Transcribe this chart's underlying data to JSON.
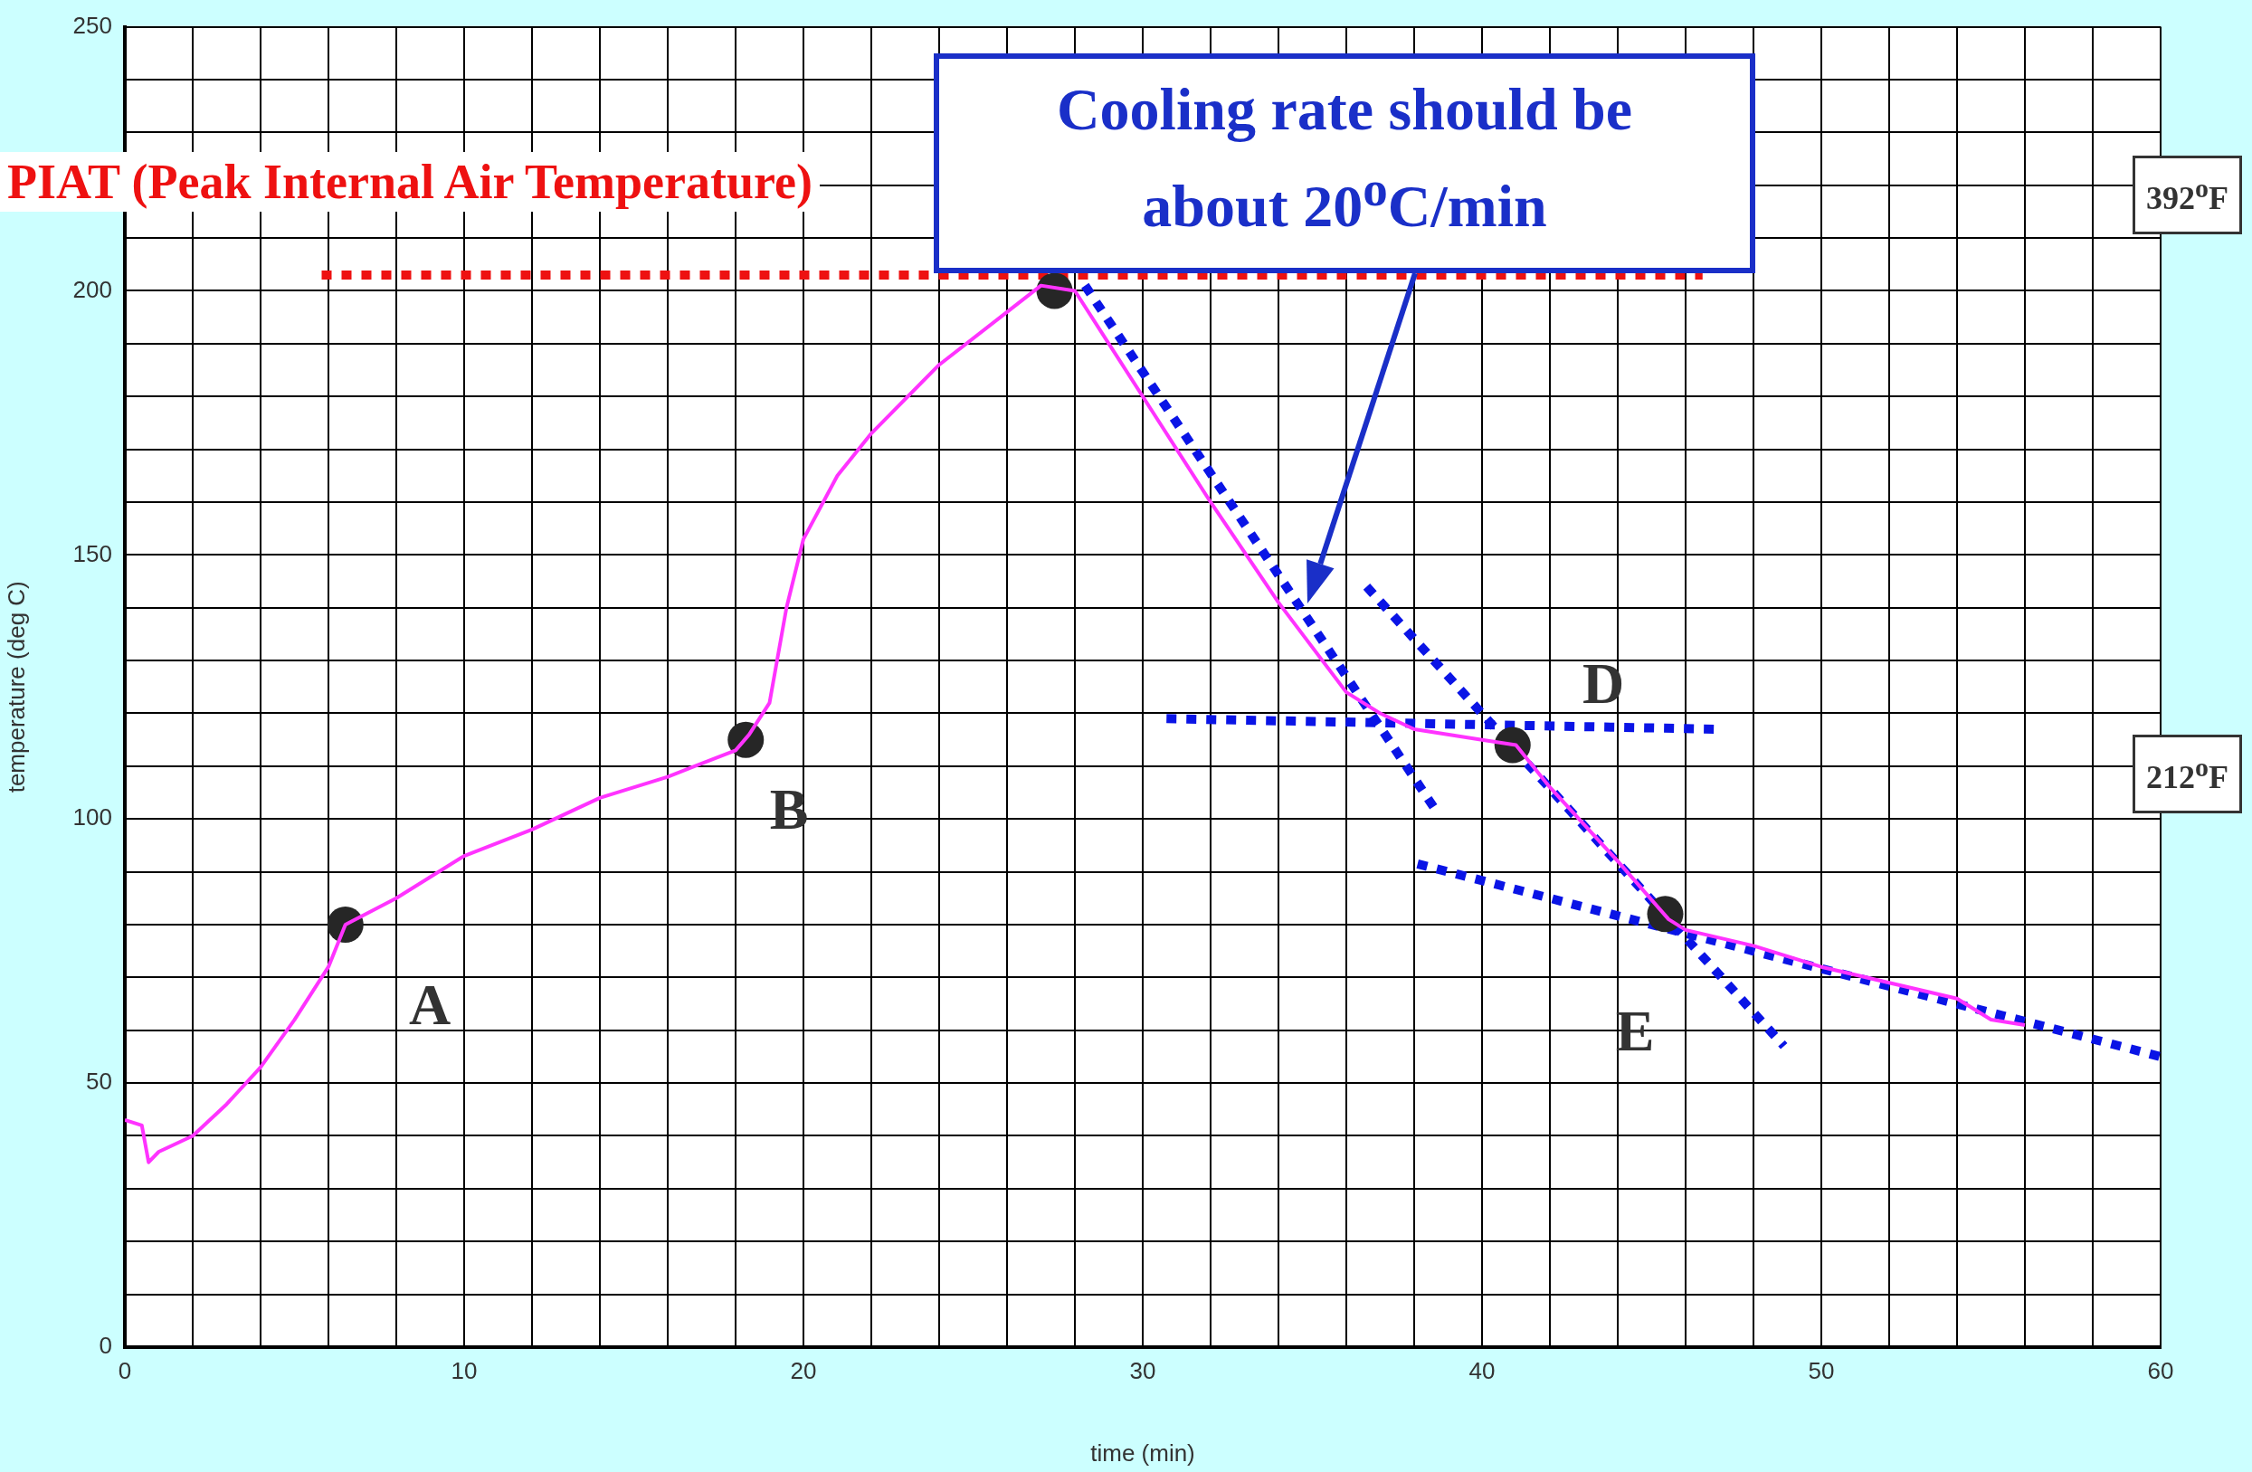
{
  "chart_data": {
    "type": "line",
    "xlabel": "time (min)",
    "ylabel": "temperature (deg C)",
    "xlim": [
      0,
      60
    ],
    "ylim": [
      0,
      250
    ],
    "xticks": [
      0,
      {
        "value": 2,
        "label": null
      },
      {
        "value": 4,
        "label": null
      },
      {
        "value": 6,
        "label": null
      },
      {
        "value": 8,
        "label": null
      },
      10,
      {
        "value": 12,
        "label": null
      },
      {
        "value": 14,
        "label": null
      },
      {
        "value": 16,
        "label": null
      },
      {
        "value": 18,
        "label": null
      },
      20,
      {
        "value": 22,
        "label": null
      },
      {
        "value": 24,
        "label": null
      },
      {
        "value": 26,
        "label": null
      },
      {
        "value": 28,
        "label": null
      },
      30,
      {
        "value": 32,
        "label": null
      },
      {
        "value": 34,
        "label": null
      },
      {
        "value": 36,
        "label": null
      },
      {
        "value": 38,
        "label": null
      },
      40,
      {
        "value": 42,
        "label": null
      },
      {
        "value": 44,
        "label": null
      },
      {
        "value": 46,
        "label": null
      },
      {
        "value": 48,
        "label": null
      },
      50,
      {
        "value": 52,
        "label": null
      },
      {
        "value": 54,
        "label": null
      },
      {
        "value": 56,
        "label": null
      },
      {
        "value": 58,
        "label": null
      },
      60
    ],
    "yticks": [
      0,
      {
        "value": 10,
        "label": null
      },
      {
        "value": 20,
        "label": null
      },
      {
        "value": 30,
        "label": null
      },
      {
        "value": 40,
        "label": null
      },
      50,
      {
        "value": 60,
        "label": null
      },
      {
        "value": 70,
        "label": null
      },
      {
        "value": 80,
        "label": null
      },
      {
        "value": 90,
        "label": null
      },
      100,
      {
        "value": 110,
        "label": null
      },
      {
        "value": 120,
        "label": null
      },
      {
        "value": 130,
        "label": null
      },
      {
        "value": 140,
        "label": null
      },
      150,
      {
        "value": 160,
        "label": null
      },
      {
        "value": 170,
        "label": null
      },
      {
        "value": 180,
        "label": null
      },
      {
        "value": 190,
        "label": null
      },
      200,
      {
        "value": 210,
        "label": null
      },
      {
        "value": 220,
        "label": null
      },
      {
        "value": 230,
        "label": null
      },
      {
        "value": 240,
        "label": null
      },
      250
    ],
    "grid": true,
    "legend": false,
    "series": [
      {
        "type": "line",
        "color": "#ff33ff",
        "marker": "none",
        "line_style": "solid",
        "x": [
          0,
          0.5,
          0.7,
          1,
          2,
          3,
          4,
          5,
          6,
          6.5,
          8,
          10,
          12,
          14,
          16,
          18,
          18.4,
          19,
          19.5,
          20,
          21,
          22,
          24,
          26,
          27,
          28,
          29,
          30,
          32,
          34,
          36,
          37,
          38,
          40,
          41,
          42,
          44,
          45.5,
          46,
          48,
          50,
          52,
          54,
          55,
          56
        ],
        "values": [
          43,
          42,
          35,
          37,
          40,
          46,
          53,
          62,
          72,
          80,
          85,
          93,
          98,
          104,
          108,
          113,
          116,
          122,
          140,
          153,
          165,
          173,
          186,
          196,
          201,
          200,
          190,
          180,
          160,
          141,
          124,
          120,
          117,
          115,
          114,
          106,
          92,
          81,
          79,
          76,
          72,
          69,
          66,
          62,
          61
        ]
      },
      {
        "type": "scatter",
        "color": "#262626",
        "marker": "circle",
        "x": [
          6.5,
          18.3,
          27.4,
          40.9,
          45.4
        ],
        "values": [
          80,
          115,
          200,
          114,
          82
        ]
      },
      {
        "type": "line",
        "color": "#0a14e6",
        "marker": "none",
        "line_style": "dotted",
        "x": [
          28.3,
          38.6
        ],
        "values": [
          201,
          102
        ]
      },
      {
        "type": "line",
        "color": "#0a14e6",
        "marker": "none",
        "line_style": "dotted",
        "x": [
          30.7,
          47
        ],
        "values": [
          119,
          117
        ]
      },
      {
        "type": "line",
        "color": "#0a14e6",
        "marker": "none",
        "line_style": "dotted",
        "x": [
          36.6,
          48.9
        ],
        "values": [
          144,
          57
        ]
      },
      {
        "type": "line",
        "color": "#0a14e6",
        "marker": "none",
        "line_style": "dotted",
        "x": [
          38.1,
          60
        ],
        "values": [
          91.5,
          55
        ]
      },
      {
        "type": "line",
        "color": "#ee1111",
        "marker": "none",
        "line_style": "dotted",
        "x": [
          5.8,
          46.5
        ],
        "values": [
          203,
          203
        ]
      }
    ],
    "annotations": [
      "PIAT (Peak Internal Air Temperature)",
      "Cooling rate should be about 20$^{o}$C/min",
      "392$^{o}$F",
      "212$^{o}$F",
      "A",
      "B",
      "D",
      "E"
    ]
  }
}
